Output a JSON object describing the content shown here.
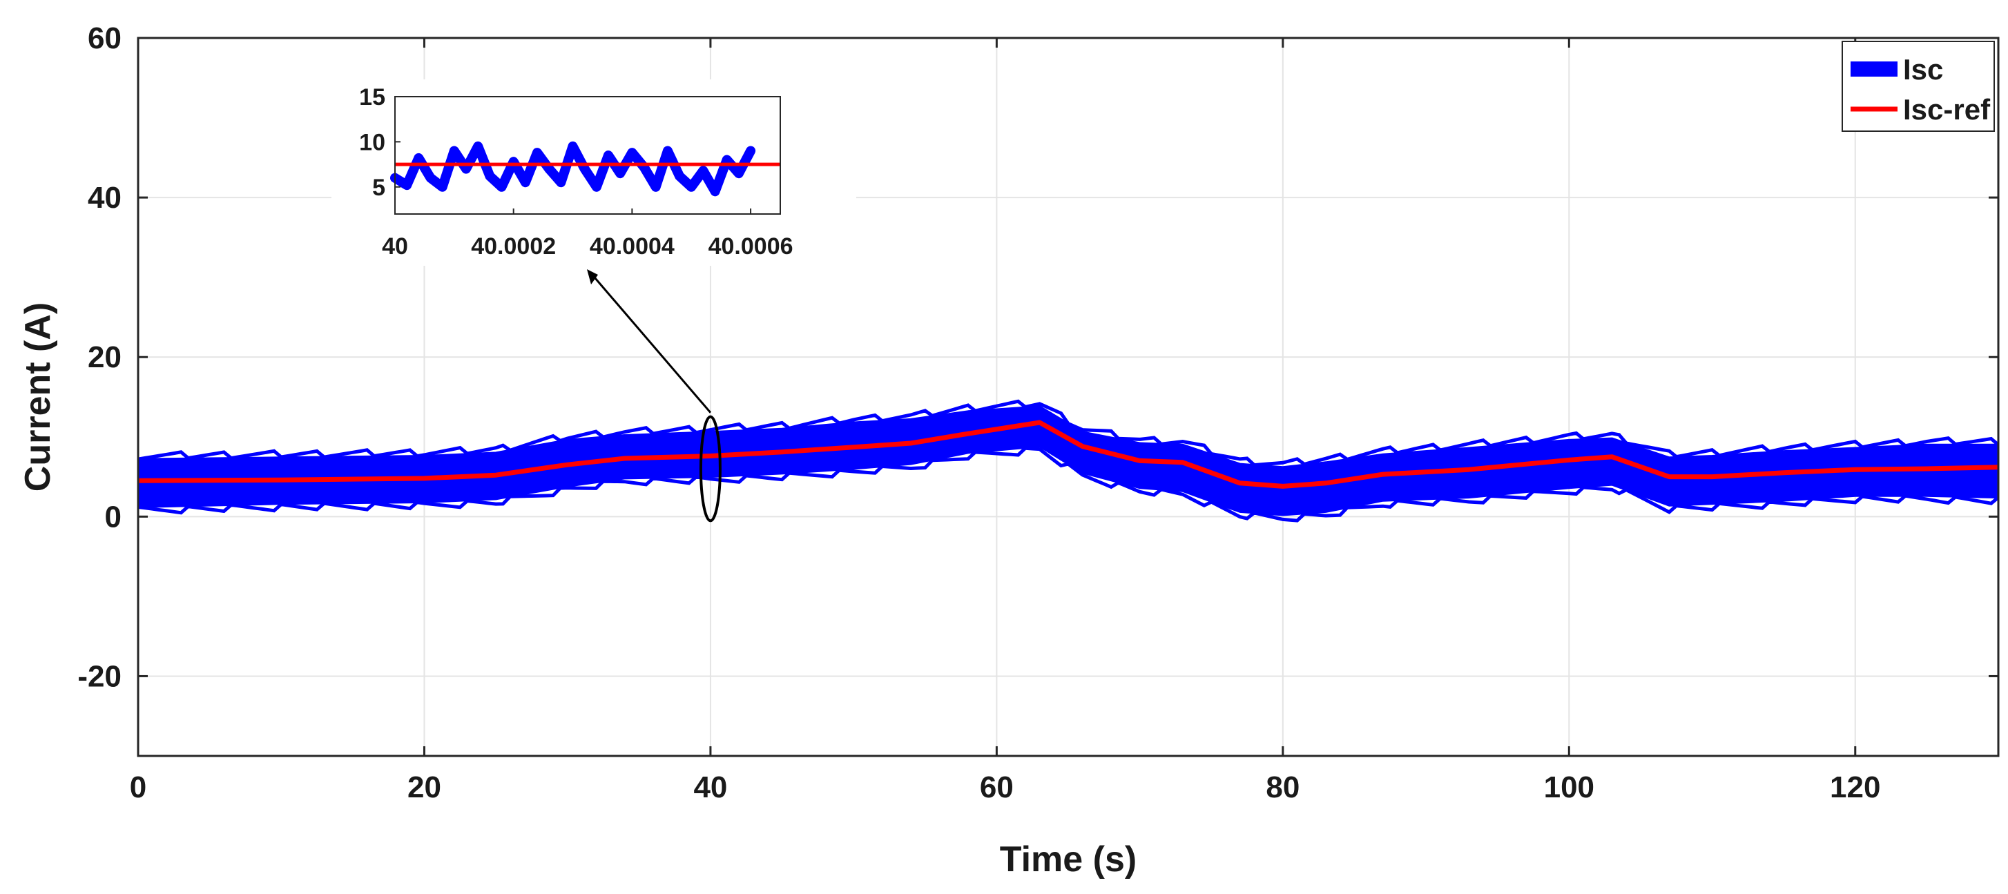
{
  "chart_data": {
    "type": "line",
    "title": "",
    "xlabel": "Time (s)",
    "ylabel": "Current (A)",
    "xlim": [
      0,
      130
    ],
    "ylim": [
      -30,
      60
    ],
    "xticks": [
      0,
      20,
      40,
      60,
      80,
      100,
      120
    ],
    "yticks": [
      -20,
      0,
      20,
      40,
      60
    ],
    "xtick_labels": [
      "0",
      "20",
      "40",
      "60",
      "80",
      "100",
      "120"
    ],
    "ytick_labels": [
      "-20",
      "0",
      "20",
      "40",
      "60"
    ],
    "grid": true,
    "legend_position": "top-right",
    "series": [
      {
        "name": "Isc",
        "color": "#0000ff",
        "style": "band",
        "x": [
          0,
          10,
          20,
          25,
          30,
          34,
          40,
          45,
          50,
          54,
          58,
          63,
          66,
          70,
          73,
          77,
          80,
          83,
          87,
          93,
          100,
          103,
          107,
          110,
          115,
          120,
          125,
          130
        ],
        "lower": [
          1.2,
          1.6,
          1.8,
          2.2,
          3.8,
          4.8,
          5.0,
          5.4,
          6.0,
          6.6,
          8.0,
          8.8,
          5.5,
          3.6,
          3.2,
          0.6,
          0.2,
          0.6,
          2.0,
          2.4,
          3.6,
          4.0,
          1.4,
          1.6,
          2.0,
          2.6,
          2.6,
          2.4
        ],
        "upper": [
          7.2,
          7.4,
          7.6,
          8.0,
          9.6,
          10.2,
          10.6,
          11.0,
          11.8,
          12.2,
          13.2,
          13.8,
          10.6,
          9.2,
          9.0,
          6.6,
          6.2,
          6.8,
          7.8,
          8.6,
          9.6,
          9.8,
          7.4,
          7.6,
          8.2,
          8.6,
          9.0,
          9.0
        ]
      },
      {
        "name": "Isc-ref",
        "color": "#ff0000",
        "style": "line",
        "x": [
          0,
          10,
          20,
          25,
          30,
          34,
          40,
          45,
          50,
          54,
          58,
          63,
          66,
          70,
          73,
          77,
          80,
          83,
          87,
          93,
          100,
          103,
          107,
          110,
          115,
          120,
          125,
          130
        ],
        "values": [
          4.5,
          4.6,
          4.8,
          5.2,
          6.5,
          7.3,
          7.6,
          8.1,
          8.7,
          9.2,
          10.4,
          11.8,
          8.8,
          7.0,
          6.8,
          4.2,
          3.8,
          4.2,
          5.3,
          5.9,
          7.1,
          7.5,
          5.0,
          5.0,
          5.5,
          5.9,
          6.0,
          6.2
        ]
      }
    ],
    "annotations": [
      {
        "type": "ellipse-marker",
        "x": 40,
        "y_range": [
          0,
          12
        ],
        "note": "highlighted region zoomed in inset"
      }
    ],
    "inset": {
      "xlim": [
        40,
        40.00065
      ],
      "ylim": [
        2,
        15
      ],
      "xticks": [
        40,
        40.0002,
        40.0004,
        40.0006
      ],
      "xtick_labels": [
        "40",
        "40.0002",
        "40.0004",
        "40.0006"
      ],
      "yticks": [
        5,
        10,
        15
      ],
      "ytick_labels": [
        "5",
        "10",
        "15"
      ],
      "ref_value": 7.5,
      "isc_x": [
        40,
        40.00002,
        40.00004,
        40.00006,
        40.00008,
        40.0001,
        40.00012,
        40.00014,
        40.00016,
        40.00018,
        40.0002,
        40.00022,
        40.00024,
        40.00026,
        40.00028,
        40.0003,
        40.00032,
        40.00034,
        40.00036,
        40.00038,
        40.0004,
        40.00042,
        40.00044,
        40.00046,
        40.00048,
        40.0005,
        40.00052,
        40.00054,
        40.00056,
        40.00058,
        40.0006
      ],
      "isc_values": [
        6.0,
        5.2,
        8.2,
        6.0,
        5.0,
        9.0,
        7.0,
        9.5,
        6.2,
        5.0,
        7.8,
        5.5,
        8.8,
        7.0,
        5.5,
        9.5,
        7.0,
        5.0,
        8.5,
        6.5,
        8.8,
        7.2,
        5.0,
        9.0,
        6.2,
        5.0,
        6.8,
        4.5,
        8.0,
        6.5,
        9.0
      ]
    }
  }
}
